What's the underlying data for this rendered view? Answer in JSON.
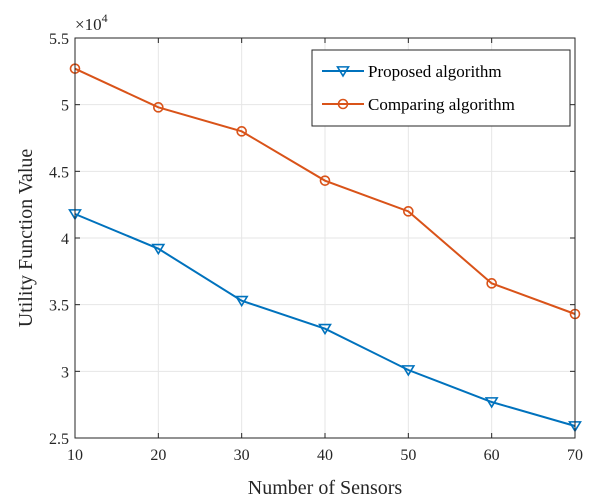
{
  "chart_data": {
    "type": "line",
    "x": [
      10,
      20,
      30,
      40,
      50,
      60,
      70
    ],
    "series": [
      {
        "name": "Proposed algorithm",
        "values": [
          4.18,
          3.92,
          3.53,
          3.32,
          3.01,
          2.77,
          2.59
        ],
        "color": "#0072BD",
        "marker": "triangle-down"
      },
      {
        "name": "Comparing algorithm",
        "values": [
          5.27,
          4.98,
          4.8,
          4.43,
          4.2,
          3.66,
          3.43
        ],
        "color": "#D95319",
        "marker": "circle"
      }
    ],
    "xlabel": "Number of Sensors",
    "ylabel": "Utility Function Value",
    "xlim": [
      10,
      70
    ],
    "ylim": [
      2.5,
      5.5
    ],
    "xticks": [
      "10",
      "20",
      "30",
      "40",
      "50",
      "60",
      "70"
    ],
    "yticks": [
      "2.5",
      "3",
      "3.5",
      "4",
      "4.5",
      "5",
      "5.5"
    ],
    "y_multiplier_base": "×10",
    "y_multiplier_exponent": "4",
    "grid": true,
    "legend_position": "top-right"
  }
}
